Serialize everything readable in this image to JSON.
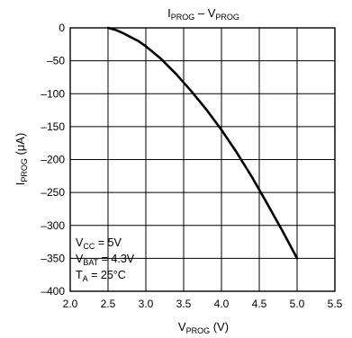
{
  "chart_data": {
    "type": "line",
    "title": {
      "main": "I",
      "main_sub": "PROG",
      "sep": " – ",
      "vs": "V",
      "vs_sub": "PROG"
    },
    "xlabel": {
      "main": "V",
      "sub": "PROG",
      "unit": " (V)"
    },
    "ylabel": {
      "main": "I",
      "sub": "PROG",
      "unit": " (μA)"
    },
    "xlim": [
      2.0,
      5.5
    ],
    "ylim": [
      -400,
      0
    ],
    "x_ticks": [
      2.0,
      2.5,
      3.0,
      3.5,
      4.0,
      4.5,
      5.0,
      5.5
    ],
    "x_tick_labels": [
      "2.0",
      "2.5",
      "3.0",
      "3.5",
      "4.0",
      "4.5",
      "5.0",
      "5.5"
    ],
    "y_ticks": [
      0,
      -50,
      -100,
      -150,
      -200,
      -250,
      -300,
      -350,
      -400
    ],
    "y_tick_labels": [
      "0",
      "–50",
      "–100",
      "–150",
      "–200",
      "–250",
      "–300",
      "–350",
      "–400"
    ],
    "grid": true,
    "series": [
      {
        "x": [
          2.5,
          2.6,
          2.7,
          2.8,
          2.9,
          3.0,
          3.2,
          3.4,
          3.6,
          3.8,
          4.0,
          4.2,
          4.4,
          4.6,
          4.8,
          5.0
        ],
        "y": [
          0,
          -3,
          -8,
          -14,
          -20,
          -28,
          -47,
          -70,
          -96,
          -124,
          -155,
          -189,
          -226,
          -266,
          -307,
          -350
        ],
        "color": "#000000"
      }
    ],
    "annotations": [
      {
        "main": "V",
        "sub": "CC",
        "rest": " = 5V"
      },
      {
        "main": "V",
        "sub": "BAT",
        "rest": " = 4.3V"
      },
      {
        "main": "T",
        "sub": "A",
        "rest": " = 25°C"
      }
    ]
  }
}
